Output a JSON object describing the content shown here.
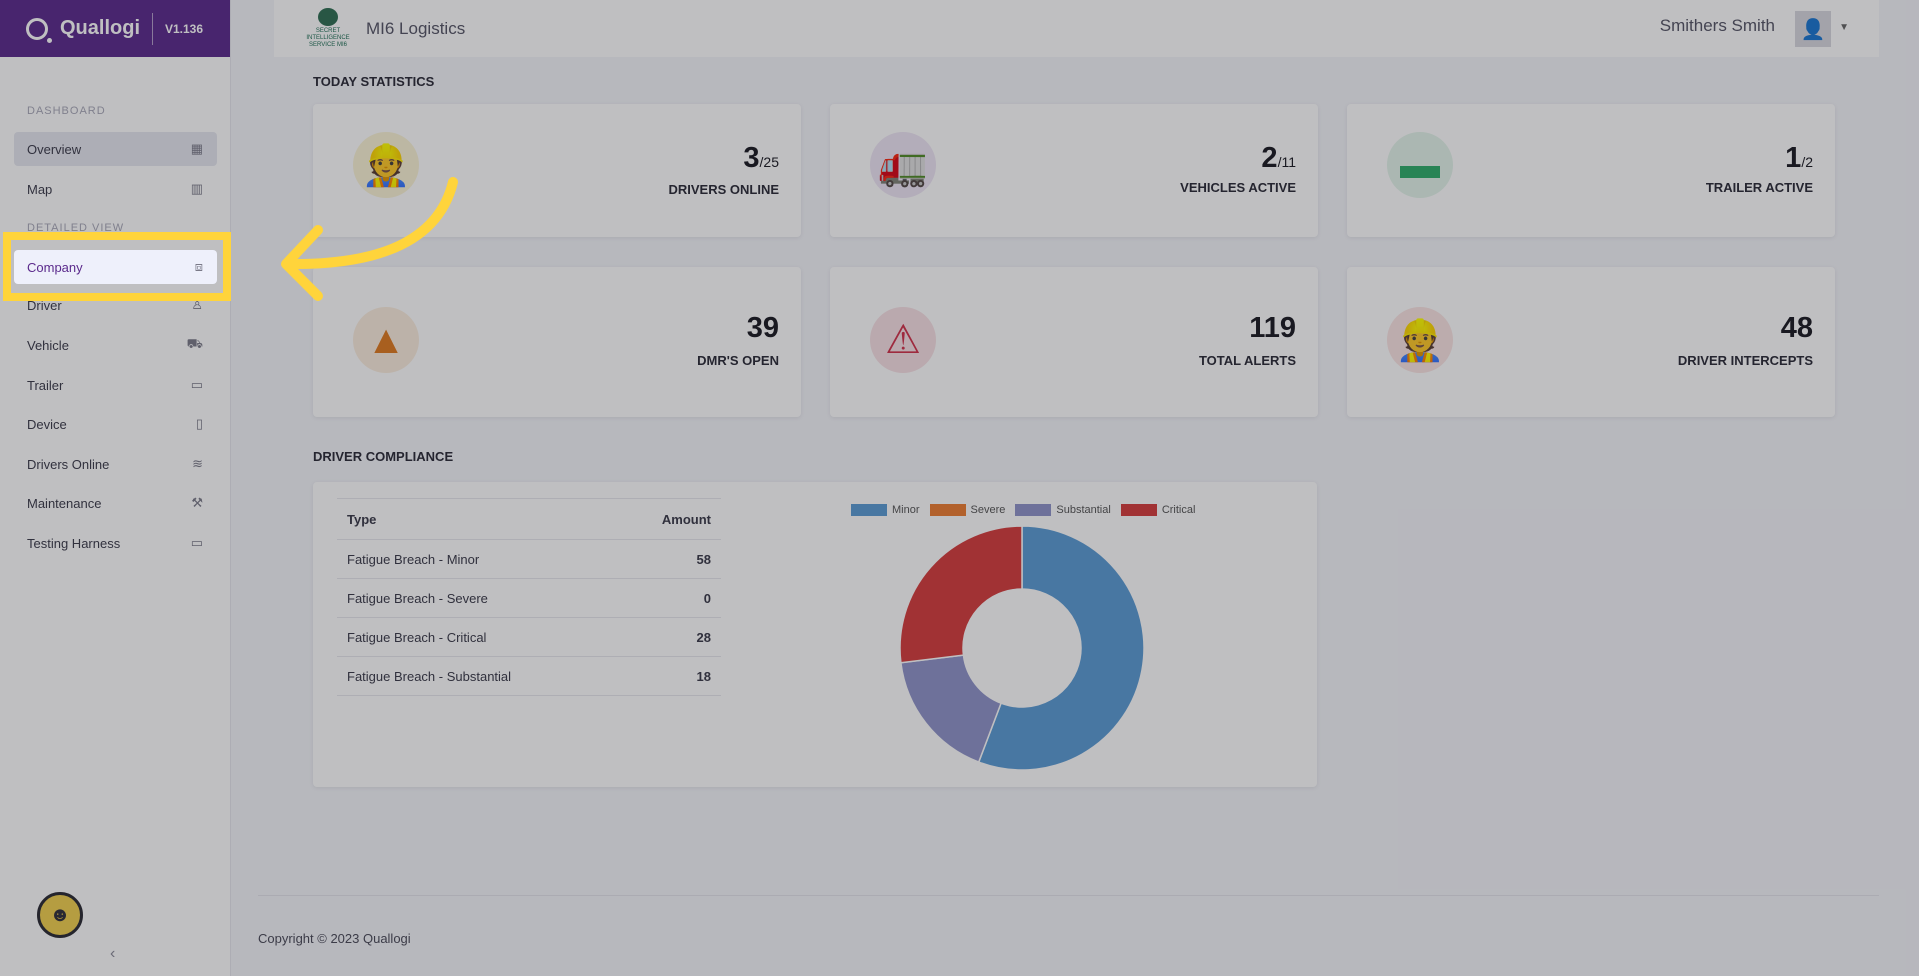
{
  "brand": {
    "name": "Quallogi",
    "version": "V1.136"
  },
  "sidebar": {
    "sections": [
      "DASHBOARD",
      "DETAILED VIEW"
    ],
    "items": [
      {
        "label": "Overview",
        "icon": "grid-icon"
      },
      {
        "label": "Map",
        "icon": "map-icon"
      },
      {
        "label": "Company",
        "icon": "briefcase-icon"
      },
      {
        "label": "Driver",
        "icon": "user-icon"
      },
      {
        "label": "Vehicle",
        "icon": "truck-icon"
      },
      {
        "label": "Trailer",
        "icon": "trailer-icon"
      },
      {
        "label": "Device",
        "icon": "phone-icon"
      },
      {
        "label": "Drivers Online",
        "icon": "wifi-icon"
      },
      {
        "label": "Maintenance",
        "icon": "wrench-icon"
      },
      {
        "label": "Testing Harness",
        "icon": "monitor-icon"
      }
    ],
    "collapse_label": "‹"
  },
  "topbar": {
    "crest_text": "SECRET INTELLIGENCE SERVICE MI6",
    "company": "MI6 Logistics",
    "user": "Smithers Smith"
  },
  "stats": {
    "heading": "TODAY STATISTICS",
    "cards": [
      {
        "value": "3",
        "suffix": "/25",
        "label": "DRIVERS ONLINE",
        "color": "#e6b800"
      },
      {
        "value": "2",
        "suffix": "/11",
        "label": "VEHICLES ACTIVE",
        "color": "#7a3fa8"
      },
      {
        "value": "1",
        "suffix": "/2",
        "label": "TRAILER ACTIVE",
        "color": "#2fae6a"
      },
      {
        "value": "39",
        "suffix": "",
        "label": "DMR'S OPEN",
        "color": "#e07a1f"
      },
      {
        "value": "119",
        "suffix": "",
        "label": "TOTAL ALERTS",
        "color": "#d2314a"
      },
      {
        "value": "48",
        "suffix": "",
        "label": "DRIVER INTERCEPTS",
        "color": "#e0473f"
      }
    ]
  },
  "compliance": {
    "heading": "DRIVER COMPLIANCE",
    "columns": [
      "Type",
      "Amount"
    ],
    "rows": [
      {
        "type": "Fatigue Breach - Minor",
        "amount": "58"
      },
      {
        "type": "Fatigue Breach - Severe",
        "amount": "0"
      },
      {
        "type": "Fatigue Breach - Critical",
        "amount": "28"
      },
      {
        "type": "Fatigue Breach - Substantial",
        "amount": "18"
      }
    ]
  },
  "chart_data": {
    "type": "pie",
    "categories": [
      "Minor",
      "Severe",
      "Substantial",
      "Critical"
    ],
    "values": [
      58,
      0,
      18,
      28
    ],
    "colors": [
      "#5b9bd5",
      "#ed7d31",
      "#8f94c9",
      "#d63c3c"
    ],
    "donut": true,
    "legend": "top"
  },
  "footer": {
    "copyright": "Copyright © 2023 Quallogi"
  },
  "annotation": {
    "highlight_color": "#ffd43b",
    "arrow_color": "#ffd43b"
  }
}
